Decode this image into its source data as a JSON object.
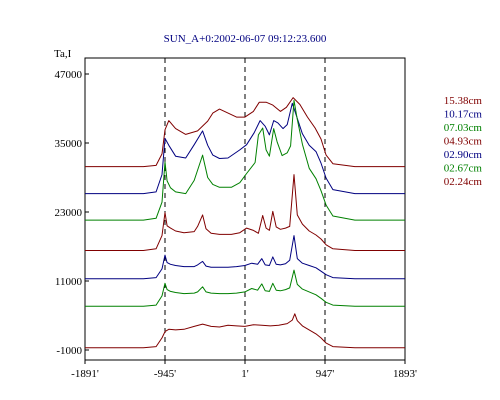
{
  "chart_data": {
    "type": "line",
    "title": "SUN_A+0:2002-06-07 09:12:23.600",
    "ylabel": "Ta,I",
    "xlabel": "",
    "xlim": [
      -1891,
      1893
    ],
    "ylim": [
      -1000,
      47000
    ],
    "x_ticks": [
      -1891,
      -945,
      1,
      947,
      1893
    ],
    "x_tick_labels": [
      "-1891'",
      "-945'",
      "1'",
      "947'",
      "1893'"
    ],
    "y_ticks": [
      -1000,
      11000,
      23000,
      35000,
      47000
    ],
    "y_tick_labels": [
      "-1000",
      "11000",
      "23000",
      "35000",
      "47000"
    ],
    "vlines": [
      -945,
      1,
      947
    ],
    "grid": false,
    "legend_position": "right",
    "series": [
      {
        "name": "15.38cm",
        "color": "#800000",
        "baseline": 30900,
        "points": [
          [
            -1891,
            0
          ],
          [
            -1200,
            0
          ],
          [
            -1050,
            200
          ],
          [
            -980,
            2200
          ],
          [
            -945,
            6400
          ],
          [
            -900,
            8000
          ],
          [
            -820,
            6600
          ],
          [
            -700,
            5600
          ],
          [
            -560,
            6200
          ],
          [
            -440,
            7900
          ],
          [
            -380,
            9300
          ],
          [
            -300,
            10000
          ],
          [
            -200,
            9300
          ],
          [
            -100,
            8600
          ],
          [
            0,
            8600
          ],
          [
            100,
            9600
          ],
          [
            170,
            11200
          ],
          [
            250,
            11200
          ],
          [
            330,
            10700
          ],
          [
            420,
            9600
          ],
          [
            490,
            10300
          ],
          [
            570,
            12000
          ],
          [
            650,
            10800
          ],
          [
            740,
            8600
          ],
          [
            830,
            6700
          ],
          [
            900,
            4800
          ],
          [
            960,
            2000
          ],
          [
            1040,
            500
          ],
          [
            1300,
            0
          ],
          [
            1893,
            0
          ]
        ]
      },
      {
        "name": "10.17cm",
        "color": "#000080",
        "baseline": 26200,
        "points": [
          [
            -1891,
            0
          ],
          [
            -1200,
            0
          ],
          [
            -1050,
            300
          ],
          [
            -980,
            3300
          ],
          [
            -945,
            9600
          ],
          [
            -900,
            8400
          ],
          [
            -820,
            6500
          ],
          [
            -700,
            6200
          ],
          [
            -600,
            8500
          ],
          [
            -500,
            10900
          ],
          [
            -440,
            8400
          ],
          [
            -380,
            6700
          ],
          [
            -300,
            6100
          ],
          [
            -200,
            6200
          ],
          [
            -60,
            7600
          ],
          [
            20,
            8500
          ],
          [
            110,
            10600
          ],
          [
            180,
            12700
          ],
          [
            240,
            11700
          ],
          [
            290,
            10200
          ],
          [
            340,
            12700
          ],
          [
            390,
            12300
          ],
          [
            450,
            11300
          ],
          [
            500,
            12000
          ],
          [
            560,
            15700
          ],
          [
            610,
            13500
          ],
          [
            680,
            10400
          ],
          [
            760,
            8400
          ],
          [
            840,
            7300
          ],
          [
            900,
            5300
          ],
          [
            960,
            2700
          ],
          [
            1040,
            700
          ],
          [
            1300,
            0
          ],
          [
            1893,
            0
          ]
        ]
      },
      {
        "name": "07.03cm",
        "color": "#008000",
        "baseline": 21600,
        "points": [
          [
            -1891,
            0
          ],
          [
            -1200,
            0
          ],
          [
            -1050,
            300
          ],
          [
            -980,
            3100
          ],
          [
            -945,
            10100
          ],
          [
            -920,
            6800
          ],
          [
            -880,
            5600
          ],
          [
            -820,
            4900
          ],
          [
            -700,
            4600
          ],
          [
            -600,
            6900
          ],
          [
            -500,
            11300
          ],
          [
            -440,
            7400
          ],
          [
            -380,
            6200
          ],
          [
            -300,
            5700
          ],
          [
            -160,
            5700
          ],
          [
            -60,
            6500
          ],
          [
            20,
            8100
          ],
          [
            120,
            10000
          ],
          [
            160,
            14800
          ],
          [
            210,
            16000
          ],
          [
            250,
            12200
          ],
          [
            290,
            11100
          ],
          [
            340,
            15900
          ],
          [
            380,
            13600
          ],
          [
            440,
            11200
          ],
          [
            500,
            11700
          ],
          [
            540,
            12900
          ],
          [
            580,
            20800
          ],
          [
            620,
            17500
          ],
          [
            680,
            13200
          ],
          [
            760,
            9000
          ],
          [
            840,
            7200
          ],
          [
            900,
            5100
          ],
          [
            960,
            2600
          ],
          [
            1040,
            700
          ],
          [
            1300,
            0
          ],
          [
            1893,
            0
          ]
        ]
      },
      {
        "name": "04.93cm",
        "color": "#800000",
        "baseline": 16300,
        "points": [
          [
            -1891,
            0
          ],
          [
            -1200,
            0
          ],
          [
            -1050,
            300
          ],
          [
            -980,
            2600
          ],
          [
            -945,
            6600
          ],
          [
            -920,
            4300
          ],
          [
            -880,
            3900
          ],
          [
            -820,
            3400
          ],
          [
            -720,
            3100
          ],
          [
            -600,
            3300
          ],
          [
            -560,
            4200
          ],
          [
            -500,
            6200
          ],
          [
            -460,
            3800
          ],
          [
            -400,
            3000
          ],
          [
            -300,
            2800
          ],
          [
            -160,
            2800
          ],
          [
            -60,
            3100
          ],
          [
            20,
            3900
          ],
          [
            100,
            3500
          ],
          [
            160,
            3000
          ],
          [
            210,
            6100
          ],
          [
            250,
            3900
          ],
          [
            290,
            3500
          ],
          [
            330,
            6800
          ],
          [
            370,
            4100
          ],
          [
            420,
            3700
          ],
          [
            480,
            3900
          ],
          [
            530,
            4200
          ],
          [
            580,
            13200
          ],
          [
            620,
            6200
          ],
          [
            680,
            4600
          ],
          [
            760,
            3400
          ],
          [
            840,
            2700
          ],
          [
            900,
            2000
          ],
          [
            960,
            1000
          ],
          [
            1040,
            300
          ],
          [
            1300,
            0
          ],
          [
            1893,
            0
          ]
        ]
      },
      {
        "name": "02.90cm",
        "color": "#000080",
        "baseline": 11400,
        "points": [
          [
            -1891,
            0
          ],
          [
            -1200,
            0
          ],
          [
            -1050,
            200
          ],
          [
            -980,
            1700
          ],
          [
            -945,
            4100
          ],
          [
            -920,
            2800
          ],
          [
            -880,
            2500
          ],
          [
            -820,
            2300
          ],
          [
            -720,
            2100
          ],
          [
            -600,
            2100
          ],
          [
            -560,
            2400
          ],
          [
            -500,
            3000
          ],
          [
            -460,
            2200
          ],
          [
            -400,
            2000
          ],
          [
            -300,
            2000
          ],
          [
            -200,
            2000
          ],
          [
            -100,
            2100
          ],
          [
            0,
            2300
          ],
          [
            80,
            2700
          ],
          [
            150,
            2500
          ],
          [
            200,
            3500
          ],
          [
            240,
            2400
          ],
          [
            290,
            2300
          ],
          [
            330,
            3800
          ],
          [
            370,
            2500
          ],
          [
            420,
            2400
          ],
          [
            480,
            2600
          ],
          [
            530,
            3200
          ],
          [
            580,
            7500
          ],
          [
            620,
            3500
          ],
          [
            680,
            2700
          ],
          [
            760,
            2300
          ],
          [
            840,
            1900
          ],
          [
            900,
            1300
          ],
          [
            960,
            700
          ],
          [
            1040,
            200
          ],
          [
            1300,
            0
          ],
          [
            1893,
            0
          ]
        ]
      },
      {
        "name": "02.67cm",
        "color": "#008000",
        "baseline": 6600,
        "points": [
          [
            -1891,
            0
          ],
          [
            -1200,
            0
          ],
          [
            -1050,
            200
          ],
          [
            -980,
            1800
          ],
          [
            -945,
            4000
          ],
          [
            -920,
            2900
          ],
          [
            -880,
            2600
          ],
          [
            -820,
            2400
          ],
          [
            -720,
            2200
          ],
          [
            -600,
            2300
          ],
          [
            -560,
            2500
          ],
          [
            -500,
            3400
          ],
          [
            -460,
            2500
          ],
          [
            -400,
            2300
          ],
          [
            -300,
            2200
          ],
          [
            -200,
            2200
          ],
          [
            -100,
            2300
          ],
          [
            0,
            2500
          ],
          [
            80,
            3100
          ],
          [
            150,
            2800
          ],
          [
            200,
            3900
          ],
          [
            240,
            2700
          ],
          [
            290,
            2600
          ],
          [
            330,
            4000
          ],
          [
            370,
            2800
          ],
          [
            420,
            2700
          ],
          [
            480,
            2900
          ],
          [
            530,
            3200
          ],
          [
            580,
            6300
          ],
          [
            620,
            3800
          ],
          [
            680,
            3000
          ],
          [
            760,
            2500
          ],
          [
            840,
            2000
          ],
          [
            900,
            1400
          ],
          [
            960,
            700
          ],
          [
            1040,
            200
          ],
          [
            1300,
            0
          ],
          [
            1893,
            0
          ]
        ]
      },
      {
        "name": "02.24cm",
        "color": "#800000",
        "baseline": -600,
        "points": [
          [
            -1891,
            0
          ],
          [
            -1200,
            0
          ],
          [
            -1050,
            200
          ],
          [
            -980,
            1700
          ],
          [
            -945,
            2800
          ],
          [
            -900,
            3200
          ],
          [
            -820,
            3100
          ],
          [
            -720,
            3200
          ],
          [
            -600,
            3700
          ],
          [
            -500,
            4100
          ],
          [
            -400,
            3700
          ],
          [
            -300,
            3600
          ],
          [
            -200,
            3900
          ],
          [
            -100,
            3800
          ],
          [
            0,
            3700
          ],
          [
            100,
            4000
          ],
          [
            200,
            3900
          ],
          [
            300,
            3800
          ],
          [
            400,
            3900
          ],
          [
            500,
            4200
          ],
          [
            560,
            4800
          ],
          [
            590,
            5900
          ],
          [
            620,
            4700
          ],
          [
            680,
            3800
          ],
          [
            760,
            3100
          ],
          [
            840,
            2400
          ],
          [
            900,
            1700
          ],
          [
            960,
            800
          ],
          [
            1040,
            200
          ],
          [
            1300,
            0
          ],
          [
            1893,
            0
          ]
        ]
      }
    ]
  }
}
